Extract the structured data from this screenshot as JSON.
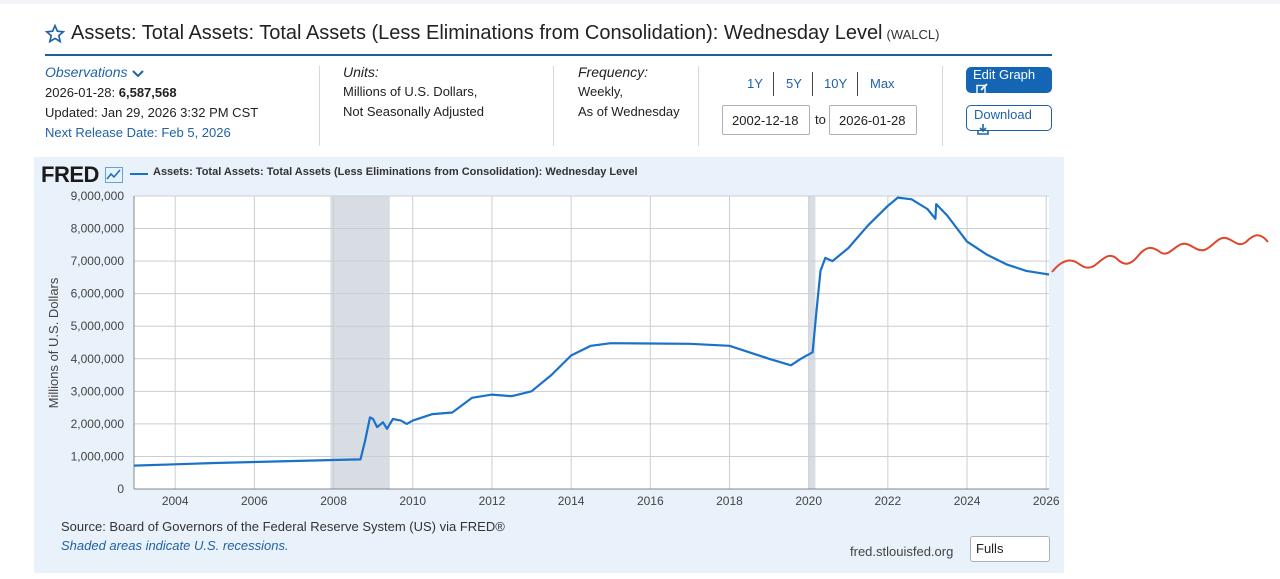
{
  "header": {
    "title": "Assets: Total Assets: Total Assets (Less Eliminations from Consolidation): Wednesday Level",
    "series_id": "(WALCL)"
  },
  "observations": {
    "label": "Observations",
    "date": "2026-01-28:",
    "value": "6,587,568",
    "updated": "Updated: Jan 29, 2026 3:32 PM CST",
    "next_release": "Next Release Date: Feb 5, 2026"
  },
  "units": {
    "label": "Units:",
    "line1": "Millions of U.S. Dollars,",
    "line2": "Not Seasonally Adjusted"
  },
  "frequency": {
    "label": "Frequency:",
    "line1": "Weekly,",
    "line2": "As of Wednesday"
  },
  "range_buttons": [
    "1Y",
    "5Y",
    "10Y",
    "Max"
  ],
  "date_range": {
    "start": "2002-12-18",
    "to_label": "to",
    "end": "2026-01-28"
  },
  "actions": {
    "edit_graph": "Edit Graph",
    "download": "Download"
  },
  "chart_meta": {
    "logo": "FRED",
    "source": "Source: Board of Governors of the Federal Reserve System (US) via FRED®",
    "shaded_note": "Shaded areas indicate U.S. recessions.",
    "site": "fred.stlouisfed.org",
    "full_button": "Fulls"
  },
  "colors": {
    "series": "#1a72c8",
    "recession": "#d8dde4",
    "accent": "#1565b5",
    "overlay": "#e0462a"
  },
  "chart_data": {
    "type": "line",
    "title": "",
    "ylabel": "Millions of U.S. Dollars",
    "xlabel": "",
    "xlim": [
      2002.96,
      2026.07
    ],
    "ylim": [
      0,
      9000000
    ],
    "y_ticks": [
      "0",
      "1,000,000",
      "2,000,000",
      "3,000,000",
      "4,000,000",
      "5,000,000",
      "6,000,000",
      "7,000,000",
      "8,000,000",
      "9,000,000"
    ],
    "x_ticks": [
      "2004",
      "2006",
      "2008",
      "2010",
      "2012",
      "2014",
      "2016",
      "2018",
      "2020",
      "2022",
      "2024",
      "2026"
    ],
    "grid": true,
    "legend": "top-left",
    "recessions": [
      [
        2007.92,
        2009.42
      ],
      [
        2020.0,
        2020.17
      ]
    ],
    "series": [
      {
        "name": "Assets: Total Assets: Total Assets (Less Eliminations from Consolidation): Wednesday Level",
        "points": [
          [
            2002.96,
            720000
          ],
          [
            2004.0,
            760000
          ],
          [
            2005.0,
            800000
          ],
          [
            2006.0,
            830000
          ],
          [
            2007.0,
            860000
          ],
          [
            2008.0,
            890000
          ],
          [
            2008.68,
            910000
          ],
          [
            2008.8,
            1500000
          ],
          [
            2008.92,
            2200000
          ],
          [
            2009.0,
            2150000
          ],
          [
            2009.1,
            1900000
          ],
          [
            2009.25,
            2050000
          ],
          [
            2009.35,
            1850000
          ],
          [
            2009.5,
            2150000
          ],
          [
            2009.7,
            2100000
          ],
          [
            2009.85,
            2000000
          ],
          [
            2010.0,
            2100000
          ],
          [
            2010.5,
            2300000
          ],
          [
            2011.0,
            2350000
          ],
          [
            2011.5,
            2800000
          ],
          [
            2012.0,
            2900000
          ],
          [
            2012.5,
            2850000
          ],
          [
            2013.0,
            3000000
          ],
          [
            2013.5,
            3500000
          ],
          [
            2014.0,
            4100000
          ],
          [
            2014.5,
            4400000
          ],
          [
            2015.0,
            4480000
          ],
          [
            2016.0,
            4470000
          ],
          [
            2017.0,
            4460000
          ],
          [
            2018.0,
            4400000
          ],
          [
            2018.5,
            4200000
          ],
          [
            2019.0,
            4000000
          ],
          [
            2019.55,
            3800000
          ],
          [
            2019.8,
            4000000
          ],
          [
            2020.1,
            4200000
          ],
          [
            2020.2,
            5500000
          ],
          [
            2020.3,
            6700000
          ],
          [
            2020.42,
            7100000
          ],
          [
            2020.6,
            7000000
          ],
          [
            2021.0,
            7400000
          ],
          [
            2021.5,
            8100000
          ],
          [
            2022.0,
            8700000
          ],
          [
            2022.25,
            8950000
          ],
          [
            2022.6,
            8900000
          ],
          [
            2023.0,
            8600000
          ],
          [
            2023.2,
            8300000
          ],
          [
            2023.22,
            8750000
          ],
          [
            2023.5,
            8400000
          ],
          [
            2024.0,
            7600000
          ],
          [
            2024.5,
            7200000
          ],
          [
            2025.0,
            6900000
          ],
          [
            2025.5,
            6700000
          ],
          [
            2026.0,
            6600000
          ],
          [
            2026.07,
            6587568
          ]
        ]
      }
    ]
  }
}
